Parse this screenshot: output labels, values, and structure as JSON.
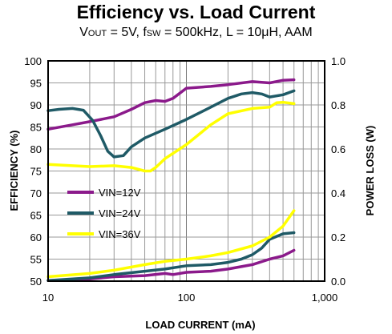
{
  "chart_data": {
    "type": "line",
    "title": "Efficiency vs. Load Current",
    "subtitle_parts": {
      "v": "V",
      "v_sub": "OUT",
      "mid1": " = 5V, f",
      "f_sub": "SW",
      "rest": " = 500kHz, L = 10μH, AAM"
    },
    "xlabel": "LOAD CURRENT  (mA)",
    "ylabel_left": "EFFICIENCY  (%)",
    "ylabel_right": "POWER LOSS (W)",
    "x_scale": "log",
    "xlim": [
      10,
      1000
    ],
    "ylim_left": [
      50,
      100
    ],
    "ylim_right": [
      0,
      1.0
    ],
    "x_ticks": [
      {
        "value": 10,
        "label": "10"
      },
      {
        "value": 100,
        "label": "100"
      },
      {
        "value": 1000,
        "label": "1,000"
      }
    ],
    "y_ticks_left": [
      "50",
      "55",
      "60",
      "65",
      "70",
      "75",
      "80",
      "85",
      "90",
      "95",
      "100"
    ],
    "y_ticks_right": [
      {
        "value": 0,
        "label": "0.0"
      },
      {
        "value": 0.2,
        "label": "0.2"
      },
      {
        "value": 0.4,
        "label": "0.4"
      },
      {
        "value": 0.6,
        "label": "0.6"
      },
      {
        "value": 0.8,
        "label": "0.8"
      },
      {
        "value": 1.0,
        "label": "1.0"
      }
    ],
    "grid": true,
    "legend_position": "lower-left",
    "series": [
      {
        "name": "VIN=12V",
        "color": "#8B1A8B",
        "efficiency": {
          "x": [
            10,
            15,
            20,
            30,
            40,
            50,
            60,
            70,
            80,
            100,
            150,
            200,
            300,
            400,
            500,
            600
          ],
          "y": [
            84.5,
            85.5,
            86.2,
            87.3,
            89.0,
            90.5,
            91.0,
            90.8,
            91.5,
            93.8,
            94.2,
            94.6,
            95.3,
            95.0,
            95.6,
            95.7
          ]
        },
        "power_loss": {
          "x": [
            10,
            20,
            30,
            50,
            70,
            80,
            100,
            150,
            200,
            300,
            400,
            500,
            600
          ],
          "y": [
            0.003,
            0.01,
            0.02,
            0.025,
            0.035,
            0.03,
            0.04,
            0.045,
            0.055,
            0.075,
            0.1,
            0.115,
            0.14
          ]
        }
      },
      {
        "name": "VIN=24V",
        "color": "#1F5A66",
        "efficiency": {
          "x": [
            10,
            12,
            15,
            18,
            21,
            24,
            27,
            30,
            35,
            40,
            50,
            70,
            100,
            150,
            200,
            250,
            300,
            350,
            400,
            500,
            600
          ],
          "y": [
            88.7,
            89.0,
            89.2,
            88.8,
            86.5,
            83.0,
            79.5,
            78.2,
            78.5,
            80.5,
            82.5,
            84.5,
            86.7,
            89.5,
            91.5,
            92.5,
            92.8,
            92.5,
            91.8,
            92.3,
            93.2
          ]
        },
        "power_loss": {
          "x": [
            10,
            20,
            30,
            50,
            70,
            100,
            150,
            200,
            250,
            300,
            350,
            400,
            500,
            600
          ],
          "y": [
            0.003,
            0.015,
            0.03,
            0.045,
            0.055,
            0.07,
            0.075,
            0.085,
            0.1,
            0.12,
            0.15,
            0.19,
            0.215,
            0.22
          ]
        }
      },
      {
        "name": "VIN=36V",
        "color": "#FFFF00",
        "efficiency": {
          "x": [
            10,
            15,
            20,
            30,
            40,
            50,
            55,
            60,
            70,
            100,
            150,
            200,
            300,
            400,
            450,
            500,
            600
          ],
          "y": [
            76.5,
            76.2,
            76.0,
            76.2,
            75.8,
            75.0,
            75.0,
            75.8,
            77.8,
            81.0,
            85.5,
            88.0,
            89.2,
            89.5,
            90.5,
            90.6,
            90.3
          ]
        },
        "power_loss": {
          "x": [
            10,
            20,
            30,
            50,
            70,
            100,
            150,
            200,
            300,
            400,
            500,
            600
          ],
          "y": [
            0.02,
            0.035,
            0.05,
            0.075,
            0.09,
            0.1,
            0.115,
            0.13,
            0.16,
            0.2,
            0.25,
            0.32
          ]
        }
      }
    ]
  }
}
